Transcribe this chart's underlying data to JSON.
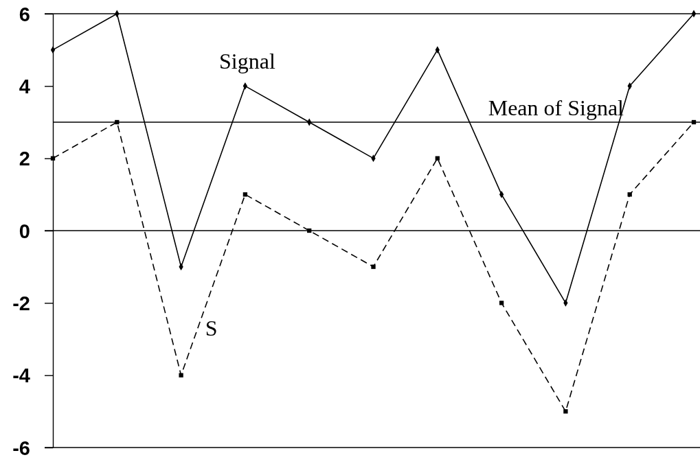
{
  "chart_data": {
    "type": "line",
    "categories": [
      null,
      null,
      null,
      null,
      null,
      null,
      null,
      null,
      null,
      null,
      null
    ],
    "series": [
      {
        "name": "Signal",
        "color": "#000000",
        "values": [
          5,
          6,
          -1,
          4,
          3,
          2,
          5,
          1,
          -2,
          4,
          6
        ],
        "marker": "diamond",
        "line_style": "solid"
      },
      {
        "name": "S",
        "color": "#000000",
        "values": [
          2,
          3,
          -4,
          1,
          0,
          -1,
          2,
          -2,
          -5,
          1,
          3
        ],
        "marker": "square",
        "line_style": "dashed"
      }
    ],
    "ylim": [
      -6,
      6
    ],
    "yticks": [
      -6,
      -4,
      -2,
      0,
      2,
      4,
      6
    ],
    "ref_lines": [
      {
        "axis": "y",
        "value": 3,
        "label": "Mean of Signal"
      }
    ]
  }
}
